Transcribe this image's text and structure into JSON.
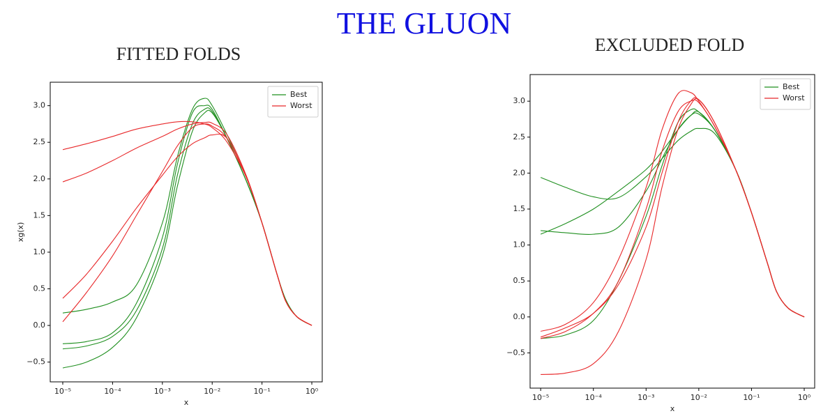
{
  "title": "THE GLUON",
  "chart_data": [
    {
      "type": "line",
      "title": "FITTED FOLDS",
      "xlabel": "x",
      "ylabel": "xg(x)",
      "xlog": true,
      "xlim": [
        5.6e-06,
        1.62
      ],
      "ylim": [
        -0.77,
        3.32
      ],
      "xticks": [
        {
          "value": 1e-05,
          "label": "10⁻⁵"
        },
        {
          "value": 0.0001,
          "label": "10⁻⁴"
        },
        {
          "value": 0.001,
          "label": "10⁻³"
        },
        {
          "value": 0.01,
          "label": "10⁻²"
        },
        {
          "value": 0.1,
          "label": "10⁻¹"
        },
        {
          "value": 1,
          "label": "10⁰"
        }
      ],
      "yticks": [
        {
          "value": -0.5,
          "label": "−0.5"
        },
        {
          "value": 0,
          "label": "0.0"
        },
        0.5,
        {
          "value": 1,
          "label": "1.0"
        },
        1.5,
        {
          "value": 2,
          "label": "2.0"
        },
        2.5,
        {
          "value": 3,
          "label": "3.0"
        }
      ],
      "legend": "upper right",
      "x": [
        1e-05,
        3e-05,
        0.0001,
        0.0003,
        0.001,
        0.002,
        0.004,
        0.007,
        0.01,
        0.02,
        0.05,
        0.1,
        0.2,
        0.3,
        0.5,
        1
      ],
      "series": [
        {
          "name": "Best",
          "color": "#1f8f1f",
          "values": [
            [
              0.17,
              0.22,
              0.32,
              0.55,
              1.4,
              2.3,
              2.95,
              3.1,
              3.0,
              2.6,
              2.0,
              1.4,
              0.7,
              0.35,
              0.12,
              0
            ],
            [
              -0.25,
              -0.22,
              -0.1,
              0.3,
              1.2,
              2.2,
              2.9,
              3.0,
              2.95,
              2.55,
              1.95,
              1.4,
              0.7,
              0.35,
              0.12,
              0
            ],
            [
              -0.32,
              -0.28,
              -0.15,
              0.2,
              1.05,
              2.05,
              2.75,
              2.95,
              2.92,
              2.55,
              1.95,
              1.4,
              0.7,
              0.35,
              0.12,
              0
            ],
            [
              -0.58,
              -0.5,
              -0.3,
              0.1,
              0.95,
              1.9,
              2.65,
              2.9,
              2.9,
              2.55,
              1.95,
              1.4,
              0.7,
              0.35,
              0.12,
              0
            ]
          ]
        },
        {
          "name": "Worst",
          "color": "#e8282a",
          "values": [
            [
              2.4,
              2.48,
              2.58,
              2.68,
              2.75,
              2.78,
              2.78,
              2.75,
              2.7,
              2.5,
              2.0,
              1.4,
              0.7,
              0.33,
              0.12,
              0
            ],
            [
              1.96,
              2.08,
              2.25,
              2.42,
              2.58,
              2.68,
              2.75,
              2.77,
              2.76,
              2.6,
              2.02,
              1.4,
              0.7,
              0.33,
              0.12,
              0
            ],
            [
              0.37,
              0.7,
              1.15,
              1.6,
              2.05,
              2.3,
              2.48,
              2.56,
              2.6,
              2.55,
              2.0,
              1.4,
              0.7,
              0.33,
              0.12,
              0
            ],
            [
              0.05,
              0.45,
              0.95,
              1.5,
              2.1,
              2.45,
              2.7,
              2.75,
              2.72,
              2.55,
              2.0,
              1.4,
              0.7,
              0.33,
              0.12,
              0
            ]
          ]
        }
      ]
    },
    {
      "type": "line",
      "title": "EXCLUDED FOLD",
      "xlabel": "x",
      "xlog": true,
      "xlim": [
        6.3e-06,
        1.58
      ],
      "ylim": [
        -0.99,
        3.37
      ],
      "xticks": [
        {
          "value": 1e-05,
          "label": "10⁻⁵"
        },
        {
          "value": 0.0001,
          "label": "10⁻⁴"
        },
        {
          "value": 0.001,
          "label": "10⁻³"
        },
        {
          "value": 0.01,
          "label": "10⁻²"
        },
        {
          "value": 0.1,
          "label": "10⁻¹"
        },
        {
          "value": 1,
          "label": "10⁰"
        }
      ],
      "yticks": [
        {
          "value": -0.5,
          "label": "−0.5"
        },
        {
          "value": 0,
          "label": "0.0"
        },
        0.5,
        {
          "value": 1,
          "label": "1.0"
        },
        1.5,
        {
          "value": 2,
          "label": "2.0"
        },
        2.5,
        {
          "value": 3,
          "label": "3.0"
        }
      ],
      "legend": "upper right",
      "x": [
        1e-05,
        3e-05,
        0.0001,
        0.0003,
        0.001,
        0.002,
        0.004,
        0.007,
        0.01,
        0.02,
        0.05,
        0.1,
        0.2,
        0.3,
        0.5,
        1
      ],
      "series": [
        {
          "name": "Best",
          "color": "#1f8f1f",
          "values": [
            [
              1.94,
              1.8,
              1.67,
              1.66,
              1.95,
              2.2,
              2.45,
              2.58,
              2.62,
              2.55,
              2.05,
              1.45,
              0.75,
              0.35,
              0.12,
              0
            ],
            [
              1.2,
              1.17,
              1.15,
              1.25,
              1.75,
              2.2,
              2.6,
              2.8,
              2.82,
              2.6,
              2.05,
              1.45,
              0.75,
              0.35,
              0.12,
              0
            ],
            [
              1.15,
              1.3,
              1.5,
              1.75,
              2.05,
              2.3,
              2.6,
              2.8,
              2.85,
              2.6,
              2.05,
              1.45,
              0.75,
              0.35,
              0.12,
              0
            ],
            [
              -0.3,
              -0.25,
              -0.05,
              0.5,
              1.4,
              2.1,
              2.7,
              2.88,
              2.85,
              2.6,
              2.05,
              1.45,
              0.75,
              0.35,
              0.12,
              0
            ]
          ]
        },
        {
          "name": "Worst",
          "color": "#e8282a",
          "values": [
            [
              -0.8,
              -0.78,
              -0.65,
              -0.2,
              0.8,
              1.8,
              2.6,
              2.95,
              3.02,
              2.7,
              2.05,
              1.45,
              0.75,
              0.35,
              0.12,
              0
            ],
            [
              -0.2,
              -0.1,
              0.2,
              0.8,
              1.8,
              2.6,
              3.1,
              3.12,
              3.0,
              2.65,
              2.05,
              1.45,
              0.75,
              0.35,
              0.12,
              0
            ],
            [
              -0.28,
              -0.15,
              0.05,
              0.45,
              1.25,
              2.0,
              2.7,
              3.0,
              3.02,
              2.7,
              2.05,
              1.45,
              0.75,
              0.35,
              0.12,
              0
            ],
            [
              -0.3,
              -0.2,
              0.05,
              0.5,
              1.5,
              2.3,
              2.85,
              3.0,
              2.98,
              2.65,
              2.05,
              1.45,
              0.75,
              0.35,
              0.12,
              0
            ]
          ]
        }
      ]
    }
  ]
}
